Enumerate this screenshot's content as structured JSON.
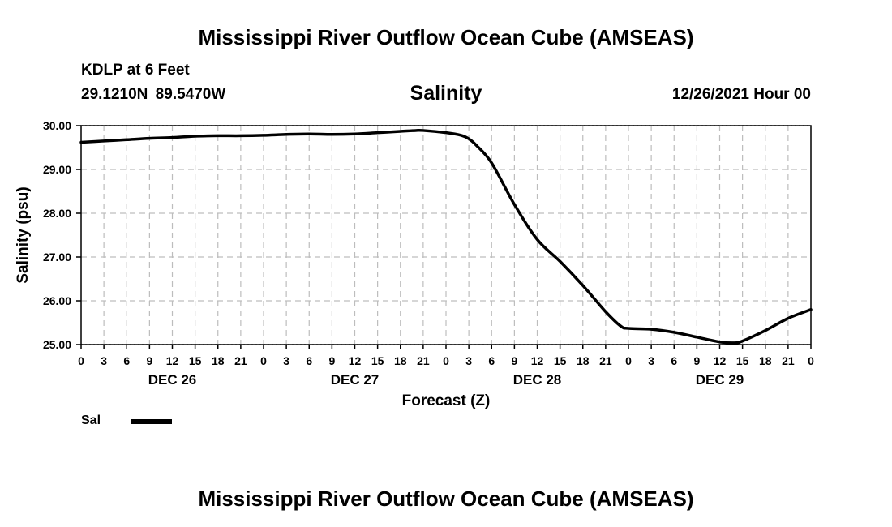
{
  "header": {
    "title": "Mississippi River Outflow Ocean Cube (AMSEAS)",
    "station": "KDLP at 6 Feet",
    "coords": "29.1210N  89.5470W",
    "variable": "Salinity",
    "datetime": "12/26/2021 Hour 00"
  },
  "footer": {
    "title": "Mississippi River Outflow Ocean Cube (AMSEAS)"
  },
  "legend": {
    "label": "Sal"
  },
  "chart_data": {
    "type": "line",
    "title": "Salinity",
    "xlabel": "Forecast (Z)",
    "ylabel": "Salinity (psu)",
    "ylim": [
      25.0,
      30.0
    ],
    "yticks": [
      "25.00",
      "26.00",
      "27.00",
      "28.00",
      "29.00",
      "30.00"
    ],
    "xlim": [
      0,
      96
    ],
    "xtick_labels": [
      "0",
      "3",
      "6",
      "9",
      "12",
      "15",
      "18",
      "21",
      "0",
      "3",
      "6",
      "9",
      "12",
      "15",
      "18",
      "21",
      "0",
      "3",
      "6",
      "9",
      "12",
      "15",
      "18",
      "21",
      "0",
      "3",
      "6",
      "9",
      "12",
      "15",
      "18",
      "21",
      "0"
    ],
    "day_labels": [
      {
        "label": "DEC 26",
        "hour": 12
      },
      {
        "label": "DEC 27",
        "hour": 36
      },
      {
        "label": "DEC 28",
        "hour": 60
      },
      {
        "label": "DEC 29",
        "hour": 84
      }
    ],
    "grid": true,
    "series": [
      {
        "name": "Sal",
        "color": "#000000",
        "x": [
          0,
          3,
          6,
          9,
          12,
          15,
          18,
          21,
          24,
          27,
          30,
          33,
          36,
          39,
          42,
          44,
          45,
          48,
          50,
          51,
          52,
          54,
          57,
          60,
          63,
          66,
          69,
          71,
          72,
          75,
          78,
          81,
          84,
          86,
          87,
          90,
          93,
          96
        ],
        "values": [
          29.62,
          29.65,
          29.68,
          29.71,
          29.73,
          29.76,
          29.77,
          29.77,
          29.78,
          29.8,
          29.81,
          29.8,
          29.81,
          29.84,
          29.87,
          29.89,
          29.89,
          29.84,
          29.78,
          29.7,
          29.55,
          29.15,
          28.2,
          27.4,
          26.9,
          26.35,
          25.75,
          25.42,
          25.37,
          25.35,
          25.28,
          25.17,
          25.06,
          25.04,
          25.08,
          25.32,
          25.6,
          25.8
        ]
      }
    ]
  }
}
